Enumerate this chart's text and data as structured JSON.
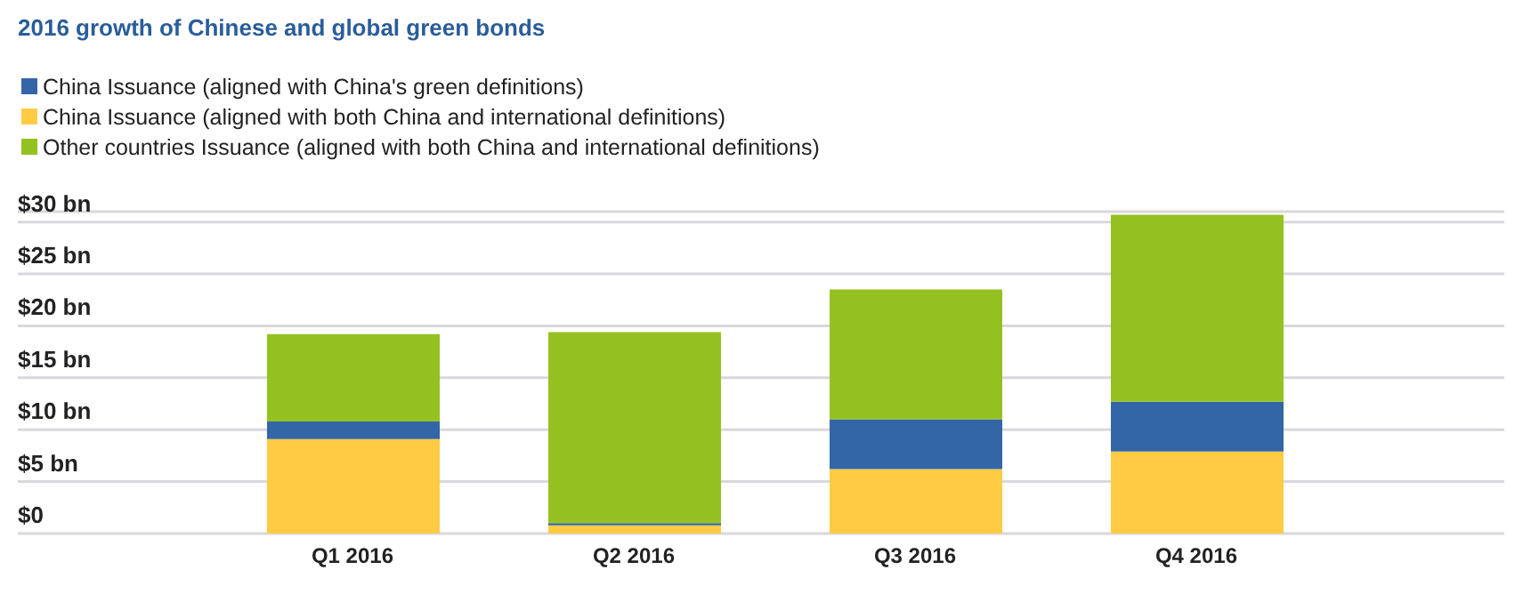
{
  "chart_data": {
    "type": "bar",
    "title": "2016 growth of Chinese and global green bonds",
    "categories": [
      "Q1 2016",
      "Q2 2016",
      "Q3 2016",
      "Q4  2016"
    ],
    "stacked": true,
    "legend": "top left",
    "grid": "y",
    "ylim": [
      0,
      31
    ],
    "yticks": [
      {
        "value": 0,
        "label": "$0"
      },
      {
        "value": 5,
        "label": "$5 bn"
      },
      {
        "value": 10,
        "label": "$10 bn"
      },
      {
        "value": 15,
        "label": "$15 bn"
      },
      {
        "value": 20,
        "label": "$20 bn"
      },
      {
        "value": 25,
        "label": "$25 bn"
      },
      {
        "value": 30,
        "label": "$30 bn"
      }
    ],
    "series": [
      {
        "name": "China Issuance (aligned with both China and international definitions)",
        "color": "#ffcc44",
        "values": [
          9.1,
          0.8,
          6.2,
          7.9
        ]
      },
      {
        "name": "China Issuance (aligned with China's green definitions)",
        "color": "#3366a6",
        "values": [
          1.7,
          0.2,
          4.8,
          4.8
        ]
      },
      {
        "name": "Other countries Issuance (aligned with both China and international definitions)",
        "color": "#95c120",
        "values": [
          8.4,
          18.4,
          12.5,
          18.0
        ]
      }
    ]
  }
}
